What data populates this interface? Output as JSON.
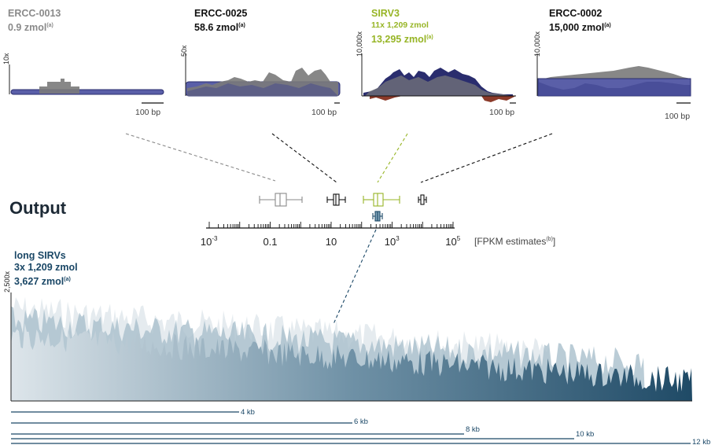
{
  "panels": [
    {
      "name": "ERCC-0013",
      "conc": "0.9 zmol",
      "sup": "(a)",
      "ylabel": "10x",
      "scale": "100 bp",
      "color": "#8a8a8a"
    },
    {
      "name": "ERCC-0025",
      "conc": "58.6 zmol",
      "sup": "(a)",
      "ylabel": "50x",
      "scale": "100 bp",
      "color": "#111111"
    },
    {
      "name": "SIRV3",
      "sub": "11x 1,209 zmol",
      "conc": "13,295 zmol",
      "sup": "(a)",
      "ylabel": "10,000x",
      "scale": "100 bp",
      "color": "#97b526"
    },
    {
      "name": "ERCC-0002",
      "conc": "15,000 zmol",
      "sup": "(a)",
      "ylabel": "10,000x",
      "scale": "100 bp",
      "color": "#111111"
    }
  ],
  "output_label": "Output",
  "axis": {
    "ticks": [
      {
        "base": "10",
        "exp": "-3"
      },
      {
        "base": "0.1",
        "exp": ""
      },
      {
        "base": "10",
        "exp": ""
      },
      {
        "base": "10",
        "exp": "3"
      },
      {
        "base": "10",
        "exp": "5"
      }
    ],
    "unit_label": "[FPKM estimates",
    "unit_sup": "(b)",
    "unit_close": "]"
  },
  "long_sirvs": {
    "title": "long SIRVs",
    "sub": "3x 1,209 zmol",
    "conc": "3,627 zmol",
    "sup": "(a)",
    "ylabel": "2,500x"
  },
  "length_bars": [
    "4 kb",
    "6 kb",
    "8 kb",
    "10 kb",
    "12 kb"
  ],
  "colors": {
    "panel_fill": "#5a5fa8",
    "panel_border": "#2a2d6e",
    "coverage": "#7a7a7a",
    "navy": "#1a4766",
    "green": "#97b526",
    "red": "#8b3a2a"
  }
}
